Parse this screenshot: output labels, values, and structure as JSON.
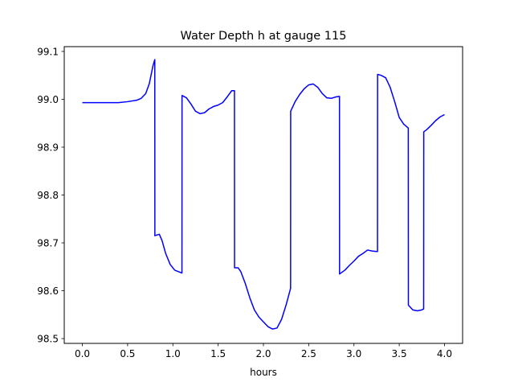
{
  "chart_data": {
    "type": "line",
    "title": "Water Depth h at gauge 115",
    "xlabel": "hours",
    "ylabel": "",
    "xlim": [
      -0.2,
      4.2
    ],
    "ylim": [
      98.49,
      99.11
    ],
    "grid": false,
    "line_color": "#0000ff",
    "xticks": [
      {
        "value": 0.0,
        "label": "0.0"
      },
      {
        "value": 0.5,
        "label": "0.5"
      },
      {
        "value": 1.0,
        "label": "1.0"
      },
      {
        "value": 1.5,
        "label": "1.5"
      },
      {
        "value": 2.0,
        "label": "2.0"
      },
      {
        "value": 2.5,
        "label": "2.5"
      },
      {
        "value": 3.0,
        "label": "3.0"
      },
      {
        "value": 3.5,
        "label": "3.5"
      },
      {
        "value": 4.0,
        "label": "4.0"
      }
    ],
    "yticks": [
      {
        "value": 98.5,
        "label": "98.5"
      },
      {
        "value": 98.6,
        "label": "98.6"
      },
      {
        "value": 98.7,
        "label": "98.7"
      },
      {
        "value": 98.8,
        "label": "98.8"
      },
      {
        "value": 98.9,
        "label": "98.9"
      },
      {
        "value": 99.0,
        "label": "99.0"
      },
      {
        "value": 99.1,
        "label": "99.1"
      }
    ],
    "series": [
      {
        "x": [
          0.0,
          0.2,
          0.4,
          0.5,
          0.6,
          0.65,
          0.7,
          0.74,
          0.78,
          0.8,
          0.801,
          0.85,
          0.88,
          0.92,
          0.97,
          1.02,
          1.1,
          1.101,
          1.15,
          1.2,
          1.25,
          1.3,
          1.35,
          1.4,
          1.45,
          1.5,
          1.55,
          1.6,
          1.65,
          1.68,
          1.681,
          1.72,
          1.75,
          1.8,
          1.85,
          1.9,
          1.95,
          2.0,
          2.05,
          2.1,
          2.15,
          2.2,
          2.25,
          2.3,
          2.301,
          2.35,
          2.4,
          2.45,
          2.5,
          2.55,
          2.6,
          2.65,
          2.7,
          2.75,
          2.8,
          2.84,
          2.841,
          2.9,
          2.95,
          3.0,
          3.05,
          3.1,
          3.15,
          3.2,
          3.25,
          3.26,
          3.261,
          3.3,
          3.35,
          3.4,
          3.45,
          3.5,
          3.55,
          3.6,
          3.601,
          3.65,
          3.7,
          3.75,
          3.77,
          3.771,
          3.8,
          3.85,
          3.9,
          3.95,
          4.0
        ],
        "y": [
          98.993,
          98.993,
          98.993,
          98.995,
          98.998,
          99.002,
          99.012,
          99.033,
          99.07,
          99.083,
          98.715,
          98.718,
          98.705,
          98.678,
          98.655,
          98.643,
          98.637,
          99.008,
          99.003,
          98.99,
          98.975,
          98.97,
          98.972,
          98.98,
          98.985,
          98.988,
          98.993,
          99.005,
          99.018,
          99.018,
          98.648,
          98.648,
          98.64,
          98.615,
          98.585,
          98.56,
          98.545,
          98.535,
          98.525,
          98.52,
          98.522,
          98.54,
          98.57,
          98.605,
          98.975,
          98.995,
          99.01,
          99.022,
          99.03,
          99.032,
          99.025,
          99.012,
          99.003,
          99.002,
          99.005,
          99.006,
          98.635,
          98.643,
          98.653,
          98.662,
          98.672,
          98.678,
          98.685,
          98.683,
          98.682,
          98.682,
          99.052,
          99.05,
          99.045,
          99.025,
          98.995,
          98.962,
          98.948,
          98.94,
          98.57,
          98.56,
          98.558,
          98.56,
          98.562,
          98.932,
          98.936,
          98.945,
          98.955,
          98.963,
          98.968
        ]
      }
    ]
  }
}
